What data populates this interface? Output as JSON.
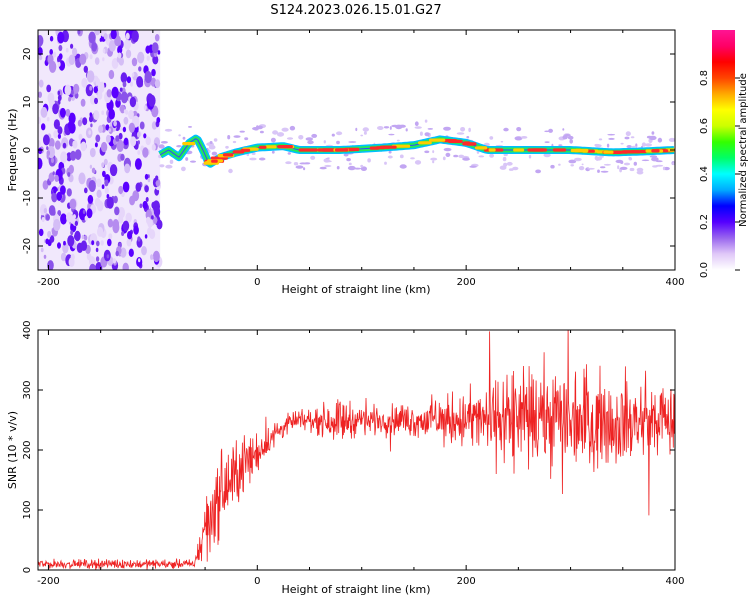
{
  "title": "S124.2023.026.15.01.G27",
  "chart_data": [
    {
      "type": "heatmap",
      "xlabel": "Height of straight line (km)",
      "ylabel": "Frequency (Hz)",
      "xlim": [
        -210,
        400
      ],
      "ylim": [
        -25,
        25
      ],
      "xticks": [
        -200,
        0,
        200,
        400
      ],
      "yticks": [
        -20,
        -10,
        0,
        10,
        20
      ],
      "colorbar": {
        "label": "Normalized spectral amplitude",
        "range": [
          0,
          1
        ],
        "ticks": [
          "0.0",
          "0.2",
          "0.4",
          "0.6",
          "0.8"
        ],
        "colors": [
          "#ffffff",
          "#e0c8f8",
          "#9966ee",
          "#5500ff",
          "#0000ff",
          "#00aaff",
          "#00ffff",
          "#00ff66",
          "#33ff00",
          "#ccff00",
          "#ffff00",
          "#ffaa00",
          "#ff4400",
          "#ff0000",
          "#ff0066",
          "#ff1493"
        ]
      },
      "noise_region_x": [
        -210,
        -93
      ],
      "ridge": [
        {
          "x": -93,
          "f": -1.0
        },
        {
          "x": -85,
          "f": 0.0
        },
        {
          "x": -75,
          "f": -1.5
        },
        {
          "x": -65,
          "f": 1.5
        },
        {
          "x": -58,
          "f": 2.5
        },
        {
          "x": -52,
          "f": 0.0
        },
        {
          "x": -46,
          "f": -3.0
        },
        {
          "x": -35,
          "f": -1.5
        },
        {
          "x": -20,
          "f": -0.5
        },
        {
          "x": 0,
          "f": 0.5
        },
        {
          "x": 25,
          "f": 0.8
        },
        {
          "x": 40,
          "f": 0.0
        },
        {
          "x": 80,
          "f": 0.0
        },
        {
          "x": 120,
          "f": 0.5
        },
        {
          "x": 150,
          "f": 1.0
        },
        {
          "x": 175,
          "f": 2.2
        },
        {
          "x": 200,
          "f": 1.5
        },
        {
          "x": 220,
          "f": 0.0
        },
        {
          "x": 260,
          "f": 0.0
        },
        {
          "x": 300,
          "f": 0.0
        },
        {
          "x": 340,
          "f": -0.5
        },
        {
          "x": 370,
          "f": -0.3
        },
        {
          "x": 400,
          "f": 0.0
        }
      ]
    },
    {
      "type": "line",
      "xlabel": "Height of straight line (km)",
      "ylabel": "SNR (10 * v/v)",
      "xlim": [
        -210,
        400
      ],
      "ylim": [
        0,
        400
      ],
      "xticks": [
        -200,
        0,
        200,
        400
      ],
      "yticks": [
        0,
        100,
        200,
        300,
        400
      ],
      "series_color": "#ee2222",
      "envelope": {
        "x": [
          -210,
          -60,
          -52,
          -40,
          -20,
          0,
          15,
          30,
          50,
          80,
          100,
          150,
          200,
          250,
          300,
          350,
          400
        ],
        "mean": [
          10,
          10,
          60,
          110,
          160,
          195,
          225,
          245,
          250,
          250,
          250,
          250,
          250,
          250,
          255,
          245,
          250
        ],
        "amp": [
          6,
          6,
          40,
          55,
          45,
          25,
          18,
          12,
          15,
          30,
          18,
          22,
          40,
          65,
          70,
          55,
          50
        ]
      }
    }
  ]
}
